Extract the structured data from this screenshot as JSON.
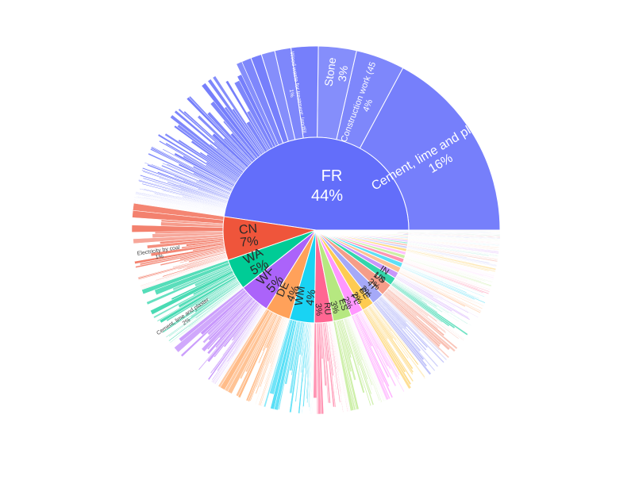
{
  "chart_data": {
    "type": "sunburst",
    "inner_ring": [
      {
        "label": "FR",
        "percent": "44%",
        "value": 44,
        "color": "#636efa"
      },
      {
        "label": "CN",
        "percent": "7%",
        "value": 7,
        "color": "#ef553b"
      },
      {
        "label": "WA",
        "percent": "5%",
        "value": 5,
        "color": "#00cc96"
      },
      {
        "label": "WF",
        "percent": "5%",
        "value": 5,
        "color": "#ab63fa"
      },
      {
        "label": "DE",
        "percent": "4%",
        "value": 4,
        "color": "#ffa15a"
      },
      {
        "label": "WM",
        "percent": "4%",
        "value": 4,
        "color": "#19d3f3"
      },
      {
        "label": "RU",
        "percent": "3%",
        "value": 3,
        "color": "#ff6692"
      },
      {
        "label": "ES",
        "percent": "3%",
        "value": 3,
        "color": "#b6e880"
      },
      {
        "label": "PL",
        "percent": "2%",
        "value": 2,
        "color": "#ff97ff"
      },
      {
        "label": "BE",
        "percent": "2%",
        "value": 2,
        "color": "#fecb52"
      },
      {
        "label": "IT",
        "percent": "2%",
        "value": 2,
        "color": "#a5a9f8"
      },
      {
        "label": "US",
        "percent": "2%",
        "value": 2,
        "color": "#f59d89"
      },
      {
        "label": "IN",
        "percent": "1%",
        "value": 1.3,
        "color": "#33d6ab"
      },
      {
        "label": "",
        "percent": "",
        "value": 1.0,
        "color": "#c996fb"
      },
      {
        "label": "",
        "percent": "",
        "value": 0.9,
        "color": "#ffc194"
      },
      {
        "label": "",
        "percent": "",
        "value": 0.8,
        "color": "#5ee0f6"
      },
      {
        "label": "",
        "percent": "",
        "value": 0.7,
        "color": "#ff94b3"
      },
      {
        "label": "",
        "percent": "",
        "value": 0.6,
        "color": "#ccefa6"
      },
      {
        "label": "",
        "percent": "",
        "value": 0.55,
        "color": "#ffc1ff"
      },
      {
        "label": "",
        "percent": "",
        "value": 0.5,
        "color": "#fedc8b"
      },
      {
        "label": "",
        "percent": "",
        "value": 0.4,
        "color": "#cfd1fc"
      },
      {
        "label": "",
        "percent": "",
        "value": 0.35,
        "color": "#f9c4b9"
      },
      {
        "label": "",
        "percent": "",
        "value": 0.3,
        "color": "#99ebd5"
      },
      {
        "label": "",
        "percent": "",
        "value": 0.3,
        "color": "#e4c1fd"
      },
      {
        "label": "",
        "percent": "",
        "value": 0.25,
        "color": "#ffe0c8"
      },
      {
        "label": "",
        "percent": "",
        "value": 0.2,
        "color": "#aeeffa"
      },
      {
        "label": "",
        "percent": "",
        "value": 0.2,
        "color": "#ffc2d3"
      },
      {
        "label": "",
        "percent": "",
        "value": 0.2,
        "color": "#e1f6cc"
      },
      {
        "label": "",
        "percent": "",
        "value": 0.15,
        "color": "#2a3fd8"
      },
      {
        "label": "",
        "percent": "",
        "value": 0.15,
        "color": "#c8102e"
      },
      {
        "label": "",
        "percent": "",
        "value": 0.15,
        "color": "#1b7f4f"
      },
      {
        "label": "",
        "percent": "",
        "value": 0.1,
        "color": "#7a2db8"
      },
      {
        "label": "",
        "percent": "",
        "value": 0.1,
        "color": "#1e88e5"
      },
      {
        "label": "",
        "percent": "",
        "value": 0.1,
        "color": "#e5a10f"
      }
    ],
    "outer_labels": [
      {
        "parent": "FR",
        "label": "Cement, lime and plaster",
        "percent": "16%"
      },
      {
        "parent": "FR",
        "label": "Construction work (45",
        "percent": "4%"
      },
      {
        "parent": "FR",
        "label": "Stone",
        "percent": "3%"
      },
      {
        "parent": "FR",
        "label": "Wood waste for treatment: landfill",
        "percent": "1%"
      },
      {
        "parent": "CN",
        "label": "Electricity by coal",
        "percent": "1%"
      },
      {
        "parent": "WA",
        "label": "Cement, lime and plaster",
        "percent": "2%"
      }
    ]
  }
}
